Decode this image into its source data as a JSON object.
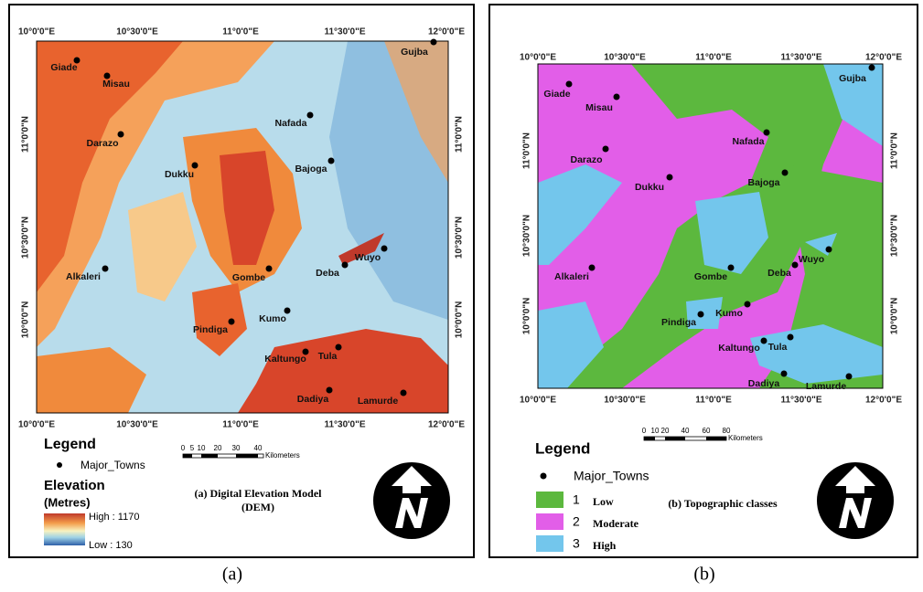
{
  "panels": [
    {
      "longitudes": [
        "10°0'0\"E",
        "10°30'0\"E",
        "11°0'0\"E",
        "11°30'0\"E",
        "12°0'0\"E"
      ],
      "latitudes": [
        "11°0'0\"N",
        "10°30'0\"N",
        "10°0'0\"N"
      ],
      "towns": [
        "Giade",
        "Misau",
        "Darazo",
        "Dukku",
        "Nafada",
        "Bajoga",
        "Gujba",
        "Wuyo",
        "Deba",
        "Gombe",
        "Alkaleri",
        "Kumo",
        "Pindiga",
        "Kaltungo",
        "Tula",
        "Dadiya",
        "Lamurde"
      ],
      "legend": {
        "title": "Legend",
        "towns": "Major_Towns",
        "elevation_title": "Elevation",
        "elevation_unit": "(Metres)",
        "high": "High : 1170",
        "low": "Low : 130"
      },
      "scale": {
        "ticks": [
          "0",
          "5",
          "10",
          "20",
          "30",
          "40"
        ],
        "unit": "Kilometers"
      },
      "caption": [
        "(a) Digital Elevation Model",
        "(DEM)"
      ],
      "label": "(a)"
    },
    {
      "longitudes": [
        "10°0'0\"E",
        "10°30'0\"E",
        "11°0'0\"E",
        "11°30'0\"E",
        "12°0'0\"E"
      ],
      "latitudes": [
        "11°0'0\"N",
        "10°30'0\"N",
        "10°0'0\"N"
      ],
      "towns": [
        "Giade",
        "Misau",
        "Darazo",
        "Dukku",
        "Nafada",
        "Bajoga",
        "Gujba",
        "Wuyo",
        "Deba",
        "Gombe",
        "Alkaleri",
        "Kumo",
        "Pindiga",
        "Kaltungo",
        "Tula",
        "Dadiya",
        "Lamurde"
      ],
      "legend": {
        "title": "Legend",
        "towns": "Major_Towns",
        "classes": [
          {
            "number": "1",
            "name": "Low"
          },
          {
            "number": "2",
            "name": "Moderate"
          },
          {
            "number": "3",
            "name": "High"
          }
        ]
      },
      "scale": {
        "ticks": [
          "0",
          "10",
          "20",
          "40",
          "60",
          "80"
        ],
        "unit": "Kilometers"
      },
      "caption": [
        "(b) Topographic classes"
      ],
      "label": "(b)"
    }
  ]
}
